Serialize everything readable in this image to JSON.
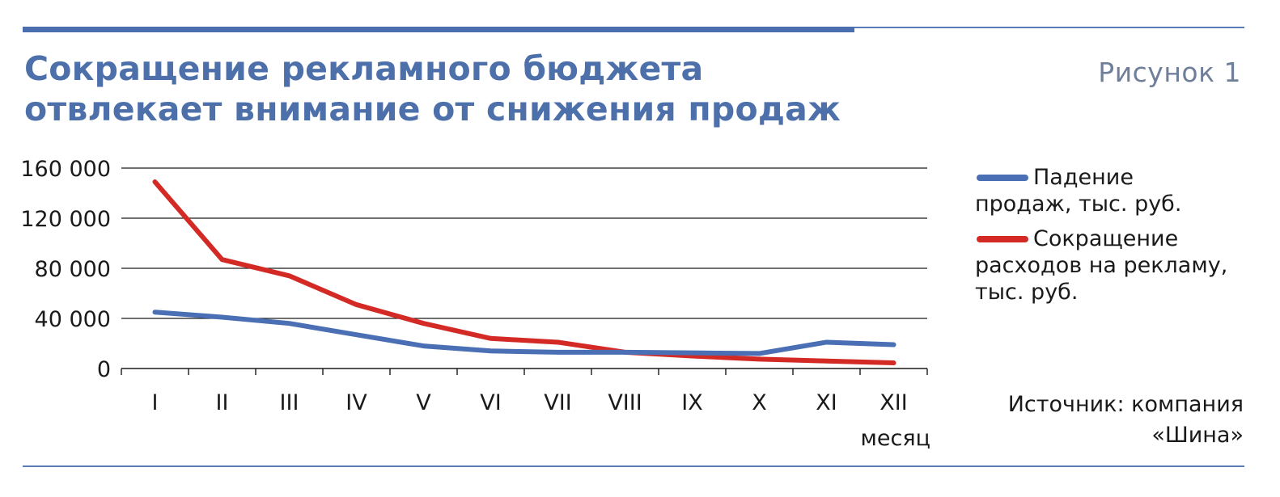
{
  "header": {
    "title_line1": "Сокращение рекламного бюджета",
    "title_line2": "отвлекает внимание от снижения продаж",
    "figure_label": "Рисунок 1"
  },
  "legend": {
    "items": [
      {
        "line1": "Падение",
        "line2": "продаж, тыс. руб.",
        "color": "#4a6fb4"
      },
      {
        "line1": "Сокращение",
        "line2": "расходов на рекламу,",
        "line3": "тыс. руб.",
        "color": "#d32a26"
      }
    ]
  },
  "source": {
    "line1": "Источник: компания",
    "line2": "«Шина»"
  },
  "chart_data": {
    "type": "line",
    "categories": [
      "I",
      "II",
      "III",
      "IV",
      "V",
      "VI",
      "VII",
      "VIII",
      "IX",
      "X",
      "XI",
      "XII"
    ],
    "xlabel": "месяц",
    "ylabel": "",
    "ylim": [
      0,
      160000
    ],
    "yticks": [
      0,
      40000,
      80000,
      120000,
      160000
    ],
    "ytick_labels": [
      "0",
      "40 000",
      "80 000",
      "120 000",
      "160 000"
    ],
    "grid": true,
    "legend_position": "right",
    "series": [
      {
        "name": "Падение продаж, тыс. руб.",
        "color": "#4a6fb4",
        "values": [
          45000,
          41000,
          36000,
          27000,
          18000,
          14000,
          13000,
          13000,
          12500,
          12000,
          21000,
          19000
        ]
      },
      {
        "name": "Сокращение расходов на рекламу, тыс. руб.",
        "color": "#d32a26",
        "values": [
          149000,
          87000,
          74000,
          51000,
          36000,
          24000,
          21000,
          13000,
          10000,
          7500,
          6000,
          4500
        ]
      }
    ]
  }
}
